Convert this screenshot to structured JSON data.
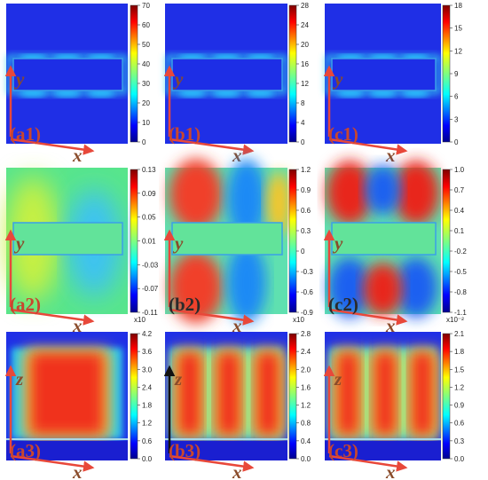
{
  "colors": {
    "axis_arrow": "#e8483a",
    "axis_label": "#8a4b2a",
    "label_red": "#c8462e",
    "label_dark": "#2a2a2a"
  },
  "panels": [
    {
      "id": "a1",
      "label": "(a1)",
      "vlabel": "y",
      "hlabel": "x",
      "field": "row1",
      "cb": [
        "0",
        "10",
        "20",
        "30",
        "40",
        "50",
        "60",
        "70"
      ],
      "mult": ""
    },
    {
      "id": "b1",
      "label": "(b1)",
      "vlabel": "y",
      "hlabel": "x",
      "field": "row1",
      "cb": [
        "0",
        "4",
        "8",
        "12",
        "16",
        "20",
        "24",
        "28"
      ],
      "mult": ""
    },
    {
      "id": "c1",
      "label": "(c1)",
      "vlabel": "y",
      "hlabel": "x",
      "field": "row1",
      "cb": [
        "0",
        "3",
        "6",
        "9",
        "12",
        "15",
        "18"
      ],
      "mult": ""
    },
    {
      "id": "a2",
      "label": "(a2)",
      "vlabel": "y",
      "hlabel": "x",
      "field": "a2",
      "cb": [
        "-0.11",
        "-0.07",
        "-0.03",
        "0.01",
        "0.05",
        "0.09",
        "0.13"
      ],
      "mult": "x10"
    },
    {
      "id": "b2",
      "label": "(b2)",
      "vlabel": "y",
      "hlabel": "x",
      "field": "b2",
      "cb": [
        "-0.9",
        "-0.6",
        "-0.3",
        "0",
        "0.3",
        "0.6",
        "0.9",
        "1.2"
      ],
      "mult": "x10"
    },
    {
      "id": "c2",
      "label": "(c2)",
      "vlabel": "y",
      "hlabel": "x",
      "field": "c2",
      "cb": [
        "-1.1",
        "-0.8",
        "-0.5",
        "-0.2",
        "0.1",
        "0.4",
        "0.7",
        "1.0"
      ],
      "mult": "x10⁻²"
    },
    {
      "id": "a3",
      "label": "(a3)",
      "vlabel": "z",
      "hlabel": "x",
      "field": "a3",
      "cb": [
        "0.0",
        "0.6",
        "1.2",
        "1.8",
        "2.4",
        "3.0",
        "3.6",
        "4.2"
      ],
      "mult": ""
    },
    {
      "id": "b3",
      "label": "(b3)",
      "vlabel": "z",
      "hlabel": "x",
      "field": "b3",
      "cb": [
        "0.0",
        "0.4",
        "0.8",
        "1.2",
        "1.6",
        "2.0",
        "2.4",
        "2.8"
      ],
      "mult": ""
    },
    {
      "id": "c3",
      "label": "(c3)",
      "vlabel": "z",
      "hlabel": "x",
      "field": "c3",
      "cb": [
        "0.0",
        "0.3",
        "0.6",
        "0.9",
        "1.2",
        "1.5",
        "1.8",
        "2.1"
      ],
      "mult": ""
    }
  ]
}
